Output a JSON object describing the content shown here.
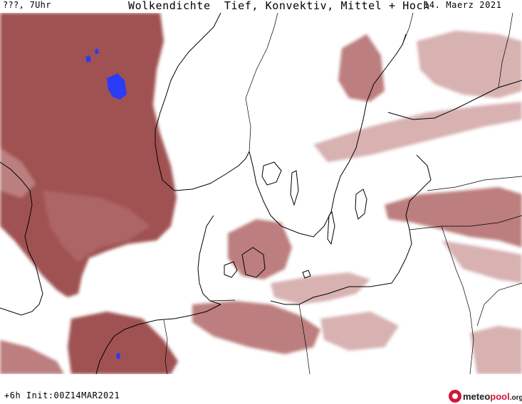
{
  "header": {
    "time_label": "???, 7Uhr",
    "title": "Wolkendichte  Tief, Konvektiv, Mittel + Hoch",
    "date": "14. Maerz 2021"
  },
  "footer": {
    "run_info": "+6h Init:00Z14MAR2021",
    "logo_text_meteo": "meteo",
    "logo_text_pool": "pool",
    "logo_text_suffix": ".org"
  },
  "colors": {
    "cloud_dense": "#9b4a4a",
    "cloud_medium": "#b06868",
    "cloud_light": "#c79090",
    "precip_blue": "#2a3cf5",
    "coastline": "#000000",
    "background": "#ffffff",
    "logo_accent": "#d2163a"
  }
}
